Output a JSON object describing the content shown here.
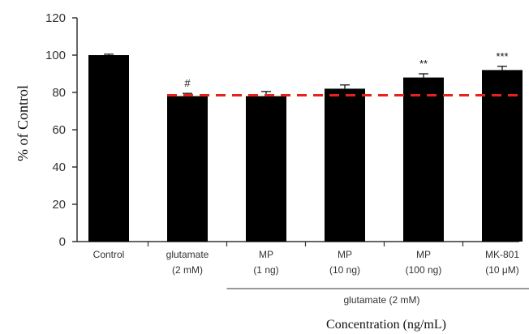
{
  "chart_data": {
    "type": "bar",
    "categories": [
      [
        "Control"
      ],
      [
        "glutamate",
        "(2 mM)"
      ],
      [
        "MP",
        "(1 ng)"
      ],
      [
        "MP",
        "(10 ng)"
      ],
      [
        "MP",
        "(100 ng)"
      ],
      [
        "MK-801",
        "(10 μM)"
      ]
    ],
    "values": [
      100,
      78,
      78,
      82,
      88,
      92
    ],
    "errors": [
      0.5,
      1.5,
      2.5,
      2,
      2,
      2
    ],
    "annotations": [
      "",
      "#",
      "",
      "",
      "**",
      "***"
    ],
    "ylim": [
      0,
      120
    ],
    "yticks": [
      0,
      20,
      40,
      60,
      80,
      100,
      120
    ],
    "ylabel": "% of Control",
    "xlabel": "Concentration (ng/mL)",
    "group_label": "glutamate (2 mM)",
    "group_categories": [
      2,
      5
    ],
    "reference_line": {
      "value": 78.5,
      "style": "dashed",
      "color": "#e8201e"
    },
    "colors": {
      "bar": "#000000",
      "axis": "#333333"
    },
    "grid": false
  }
}
